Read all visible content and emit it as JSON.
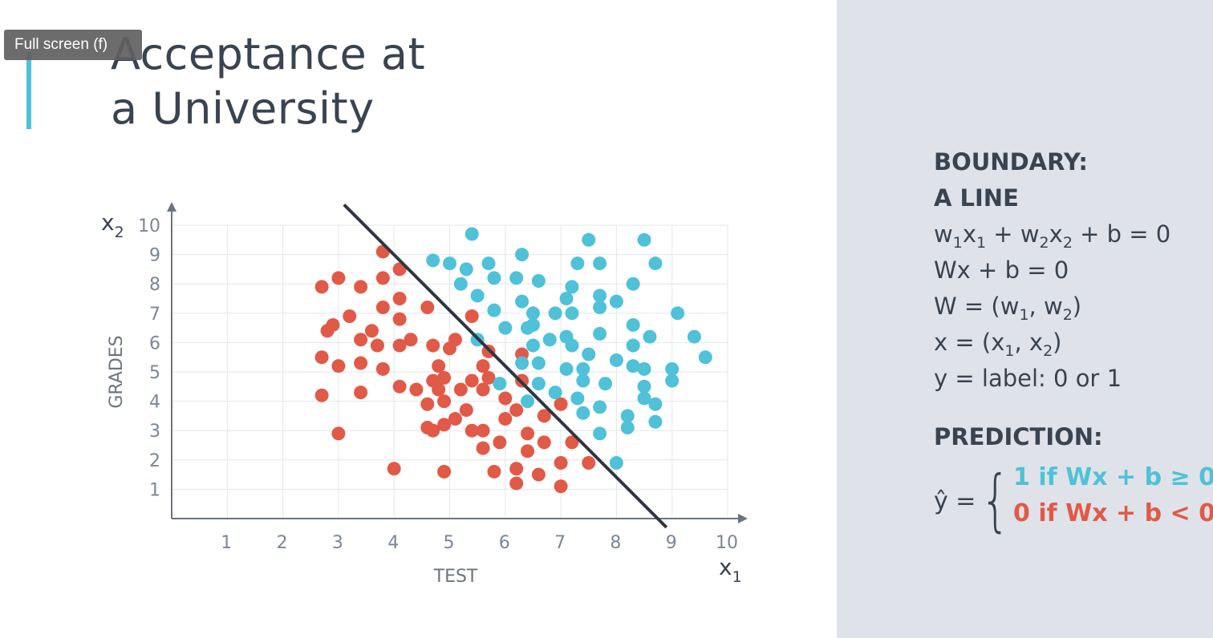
{
  "tooltip": "Full screen (f)",
  "slide": {
    "title_line1": "Acceptance at",
    "title_line2": "a University",
    "colors": {
      "accent": "#4fc1d8",
      "positive": "#4fc1d8",
      "negative": "#e05a47",
      "text": "#3a4350",
      "panel_bg": "#dfe2e9"
    }
  },
  "panel": {
    "boundary_heading_1": "BOUNDARY:",
    "boundary_heading_2": "A LINE",
    "eq1": [
      "w",
      "1",
      "x",
      "1",
      " + w",
      "2",
      "x",
      "2",
      " + b = 0"
    ],
    "eq2": "Wx + b = 0",
    "eq3": [
      "W = (w",
      "1",
      ", w",
      "2",
      ")"
    ],
    "eq4": [
      "x = (x",
      "1",
      ", x",
      "2",
      ")"
    ],
    "eq5": "y = label: 0 or 1",
    "prediction_heading": "PREDICTION:",
    "yhat": "ŷ =",
    "case_accept": "1 if Wx + b ≥ 0",
    "case_reject": "0 if Wx + b < 0"
  },
  "chart_data": {
    "type": "scatter",
    "xlabel": "TEST",
    "ylabel": "GRADES",
    "x_axis_var": "x",
    "x_axis_sub": "1",
    "y_axis_var": "x",
    "y_axis_sub": "2",
    "xlim": [
      0,
      10
    ],
    "ylim": [
      0,
      10
    ],
    "xticks": [
      "1",
      "2",
      "3",
      "4",
      "5",
      "6",
      "7",
      "8",
      "9",
      "10"
    ],
    "yticks": [
      "1",
      "2",
      "3",
      "4",
      "5",
      "6",
      "7",
      "8",
      "9",
      "10"
    ],
    "grid": true,
    "boundary_line": {
      "from": [
        3.1,
        10.7
      ],
      "to": [
        8.9,
        -0.3
      ]
    },
    "series": [
      {
        "color": "#e05a47",
        "points": [
          [
            2.7,
            7.9
          ],
          [
            3.0,
            8.2
          ],
          [
            3.4,
            7.9
          ],
          [
            3.8,
            8.2
          ],
          [
            3.8,
            9.1
          ],
          [
            4.1,
            8.5
          ],
          [
            2.8,
            6.4
          ],
          [
            2.9,
            6.6
          ],
          [
            3.2,
            6.9
          ],
          [
            3.4,
            6.1
          ],
          [
            3.6,
            6.4
          ],
          [
            3.7,
            5.9
          ],
          [
            3.8,
            7.2
          ],
          [
            4.1,
            7.5
          ],
          [
            4.1,
            6.8
          ],
          [
            4.1,
            5.9
          ],
          [
            4.3,
            6.1
          ],
          [
            4.6,
            7.2
          ],
          [
            2.7,
            5.5
          ],
          [
            3.0,
            5.2
          ],
          [
            3.4,
            5.3
          ],
          [
            3.8,
            5.1
          ],
          [
            4.1,
            4.5
          ],
          [
            4.4,
            4.4
          ],
          [
            4.7,
            5.9
          ],
          [
            4.8,
            5.2
          ],
          [
            5.0,
            5.8
          ],
          [
            5.1,
            6.1
          ],
          [
            2.7,
            4.2
          ],
          [
            3.4,
            4.3
          ],
          [
            4.7,
            4.7
          ],
          [
            4.8,
            4.4
          ],
          [
            4.9,
            4.8
          ],
          [
            4.9,
            4.0
          ],
          [
            5.2,
            4.4
          ],
          [
            5.4,
            4.7
          ],
          [
            5.6,
            4.4
          ],
          [
            5.6,
            5.2
          ],
          [
            5.7,
            5.7
          ],
          [
            5.7,
            4.8
          ],
          [
            5.4,
            6.9
          ],
          [
            6.0,
            4.1
          ],
          [
            6.3,
            4.7
          ],
          [
            6.3,
            5.6
          ],
          [
            6.2,
            3.7
          ],
          [
            3.0,
            2.9
          ],
          [
            4.6,
            3.1
          ],
          [
            4.7,
            3.0
          ],
          [
            4.6,
            3.9
          ],
          [
            4.9,
            3.2
          ],
          [
            5.1,
            3.4
          ],
          [
            5.3,
            3.7
          ],
          [
            5.4,
            3.0
          ],
          [
            5.6,
            3.0
          ],
          [
            5.6,
            2.4
          ],
          [
            5.9,
            2.6
          ],
          [
            6.0,
            3.4
          ],
          [
            6.4,
            2.9
          ],
          [
            6.4,
            2.3
          ],
          [
            6.7,
            2.6
          ],
          [
            6.7,
            3.5
          ],
          [
            7.0,
            3.9
          ],
          [
            7.2,
            2.6
          ],
          [
            4.0,
            1.7
          ],
          [
            4.9,
            1.6
          ],
          [
            5.8,
            1.6
          ],
          [
            6.2,
            1.7
          ],
          [
            6.2,
            1.2
          ],
          [
            6.6,
            1.5
          ],
          [
            7.0,
            1.9
          ],
          [
            7.0,
            1.1
          ],
          [
            7.5,
            1.9
          ]
        ]
      },
      {
        "color": "#4fc1d8",
        "points": [
          [
            5.4,
            9.7
          ],
          [
            7.5,
            9.5
          ],
          [
            8.5,
            9.5
          ],
          [
            4.7,
            8.8
          ],
          [
            5.0,
            8.7
          ],
          [
            5.3,
            8.5
          ],
          [
            5.7,
            8.7
          ],
          [
            6.3,
            9.0
          ],
          [
            7.3,
            8.7
          ],
          [
            7.7,
            8.7
          ],
          [
            8.7,
            8.7
          ],
          [
            5.2,
            8.0
          ],
          [
            5.5,
            7.6
          ],
          [
            5.8,
            8.2
          ],
          [
            6.2,
            8.2
          ],
          [
            6.6,
            8.1
          ],
          [
            7.2,
            7.9
          ],
          [
            7.1,
            7.5
          ],
          [
            7.7,
            7.6
          ],
          [
            8.3,
            8.0
          ],
          [
            8.0,
            7.4
          ],
          [
            5.8,
            7.1
          ],
          [
            6.3,
            7.4
          ],
          [
            6.5,
            7.0
          ],
          [
            6.9,
            7.0
          ],
          [
            7.2,
            7.0
          ],
          [
            7.7,
            7.2
          ],
          [
            9.1,
            7.0
          ],
          [
            6.0,
            6.5
          ],
          [
            6.4,
            6.5
          ],
          [
            6.5,
            6.6
          ],
          [
            7.1,
            6.2
          ],
          [
            7.7,
            6.3
          ],
          [
            8.3,
            6.6
          ],
          [
            8.6,
            6.2
          ],
          [
            9.4,
            6.2
          ],
          [
            5.5,
            6.1
          ],
          [
            6.5,
            5.9
          ],
          [
            6.8,
            6.1
          ],
          [
            7.2,
            5.9
          ],
          [
            7.5,
            5.6
          ],
          [
            8.3,
            5.9
          ],
          [
            8.0,
            5.4
          ],
          [
            9.6,
            5.5
          ],
          [
            6.3,
            5.3
          ],
          [
            6.6,
            5.3
          ],
          [
            7.1,
            5.1
          ],
          [
            7.4,
            5.1
          ],
          [
            8.3,
            5.2
          ],
          [
            8.5,
            5.1
          ],
          [
            9.0,
            5.1
          ],
          [
            9.0,
            4.7
          ],
          [
            5.9,
            4.6
          ],
          [
            6.6,
            4.6
          ],
          [
            6.9,
            4.3
          ],
          [
            7.4,
            4.7
          ],
          [
            7.8,
            4.6
          ],
          [
            8.5,
            4.5
          ],
          [
            8.5,
            4.1
          ],
          [
            8.7,
            3.9
          ],
          [
            6.4,
            4.0
          ],
          [
            7.3,
            4.1
          ],
          [
            7.4,
            3.6
          ],
          [
            7.7,
            3.8
          ],
          [
            8.2,
            3.5
          ],
          [
            8.7,
            3.3
          ],
          [
            7.7,
            2.9
          ],
          [
            8.2,
            3.1
          ],
          [
            8.0,
            1.9
          ]
        ]
      }
    ]
  }
}
